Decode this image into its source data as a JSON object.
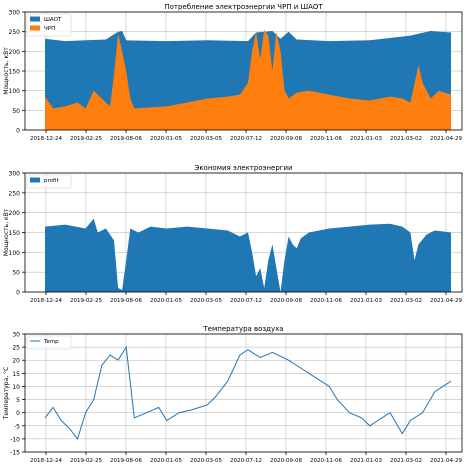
{
  "colors": {
    "shaot": "#1f77b4",
    "chp": "#ff7f0e",
    "profit": "#1f77b4",
    "temp": "#1f77b4",
    "grid": "#b0b0b0"
  },
  "chart_data": [
    {
      "type": "area",
      "title": "Потребление электроэнергии ЧРП и ШАОТ",
      "xlabel": "",
      "ylabel": "Мощность, кВт",
      "ylim": [
        0,
        300
      ],
      "y_ticks": [
        0,
        50,
        100,
        150,
        200,
        250,
        300
      ],
      "x_ticks": [
        "2018-12-24",
        "2019-02-25",
        "2019-08-06",
        "2020-01-05",
        "2020-03-05",
        "2020-07-12",
        "2020-09-08",
        "2020-11-06",
        "2021-01-03",
        "2021-03-02",
        "2021-04-29"
      ],
      "grid": true,
      "legend": "top-left",
      "series": [
        {
          "name": "ШАОТ",
          "key": "shaot",
          "description": "total consumption, approx. constant level with peaks",
          "points": [
            [
              0,
              232
            ],
            [
              0.05,
              226
            ],
            [
              0.1,
              228
            ],
            [
              0.15,
              230
            ],
            [
              0.18,
              250
            ],
            [
              0.19,
              252
            ],
            [
              0.2,
              228
            ],
            [
              0.3,
              226
            ],
            [
              0.4,
              228
            ],
            [
              0.5,
              226
            ],
            [
              0.52,
              248
            ],
            [
              0.56,
              252
            ],
            [
              0.58,
              232
            ],
            [
              0.6,
              250
            ],
            [
              0.62,
              230
            ],
            [
              0.7,
              226
            ],
            [
              0.8,
              228
            ],
            [
              0.9,
              240
            ],
            [
              0.95,
              252
            ],
            [
              1.0,
              248
            ]
          ]
        },
        {
          "name": "ЧРП",
          "key": "chp",
          "description": "variable frequency drive consumption",
          "points": [
            [
              0,
              85
            ],
            [
              0.02,
              55
            ],
            [
              0.05,
              60
            ],
            [
              0.08,
              70
            ],
            [
              0.1,
              55
            ],
            [
              0.12,
              100
            ],
            [
              0.14,
              80
            ],
            [
              0.16,
              60
            ],
            [
              0.17,
              140
            ],
            [
              0.18,
              245
            ],
            [
              0.19,
              200
            ],
            [
              0.2,
              150
            ],
            [
              0.21,
              80
            ],
            [
              0.22,
              55
            ],
            [
              0.3,
              60
            ],
            [
              0.35,
              70
            ],
            [
              0.4,
              80
            ],
            [
              0.45,
              85
            ],
            [
              0.48,
              90
            ],
            [
              0.5,
              120
            ],
            [
              0.51,
              200
            ],
            [
              0.52,
              250
            ],
            [
              0.53,
              180
            ],
            [
              0.54,
              255
            ],
            [
              0.55,
              240
            ],
            [
              0.56,
              150
            ],
            [
              0.57,
              250
            ],
            [
              0.58,
              200
            ],
            [
              0.59,
              100
            ],
            [
              0.6,
              80
            ],
            [
              0.62,
              95
            ],
            [
              0.65,
              100
            ],
            [
              0.7,
              90
            ],
            [
              0.75,
              80
            ],
            [
              0.8,
              75
            ],
            [
              0.85,
              85
            ],
            [
              0.88,
              80
            ],
            [
              0.9,
              70
            ],
            [
              0.92,
              165
            ],
            [
              0.93,
              120
            ],
            [
              0.95,
              80
            ],
            [
              0.97,
              100
            ],
            [
              1.0,
              90
            ]
          ]
        }
      ]
    },
    {
      "type": "area",
      "title": "Экономия электроэнергии",
      "xlabel": "",
      "ylabel": "Мощность, кВт",
      "ylim": [
        0,
        300
      ],
      "y_ticks": [
        0,
        50,
        100,
        150,
        200,
        250,
        300
      ],
      "x_ticks": [
        "2018-12-24",
        "2019-02-25",
        "2019-08-06",
        "2020-01-05",
        "2020-03-05",
        "2020-07-12",
        "2020-09-08",
        "2020-11-06",
        "2021-01-03",
        "2021-03-02",
        "2021-04-29"
      ],
      "grid": true,
      "legend": "top-left",
      "series": [
        {
          "name": "profit",
          "key": "profit",
          "points": [
            [
              0,
              165
            ],
            [
              0.05,
              170
            ],
            [
              0.1,
              160
            ],
            [
              0.12,
              185
            ],
            [
              0.13,
              150
            ],
            [
              0.15,
              160
            ],
            [
              0.17,
              130
            ],
            [
              0.18,
              10
            ],
            [
              0.19,
              5
            ],
            [
              0.2,
              80
            ],
            [
              0.21,
              160
            ],
            [
              0.23,
              150
            ],
            [
              0.26,
              165
            ],
            [
              0.3,
              160
            ],
            [
              0.35,
              165
            ],
            [
              0.4,
              160
            ],
            [
              0.45,
              155
            ],
            [
              0.48,
              140
            ],
            [
              0.5,
              150
            ],
            [
              0.51,
              100
            ],
            [
              0.52,
              40
            ],
            [
              0.53,
              60
            ],
            [
              0.54,
              10
            ],
            [
              0.55,
              80
            ],
            [
              0.56,
              120
            ],
            [
              0.57,
              60
            ],
            [
              0.58,
              0
            ],
            [
              0.59,
              80
            ],
            [
              0.6,
              140
            ],
            [
              0.61,
              120
            ],
            [
              0.62,
              110
            ],
            [
              0.63,
              135
            ],
            [
              0.65,
              150
            ],
            [
              0.7,
              160
            ],
            [
              0.75,
              165
            ],
            [
              0.8,
              170
            ],
            [
              0.85,
              172
            ],
            [
              0.88,
              165
            ],
            [
              0.9,
              150
            ],
            [
              0.91,
              80
            ],
            [
              0.92,
              120
            ],
            [
              0.94,
              145
            ],
            [
              0.96,
              155
            ],
            [
              1.0,
              150
            ]
          ]
        }
      ]
    },
    {
      "type": "line",
      "title": "Температура воздуха",
      "xlabel": "",
      "ylabel": "Температура, °С",
      "ylim": [
        -15,
        30
      ],
      "y_ticks": [
        -15,
        -10,
        -5,
        0,
        5,
        10,
        15,
        20,
        25,
        30
      ],
      "x_ticks": [
        "2018-12-24",
        "2019-02-25",
        "2019-08-06",
        "2020-01-05",
        "2020-03-05",
        "2020-07-12",
        "2020-09-08",
        "2020-11-06",
        "2021-01-03",
        "2021-03-02",
        "2021-04-29"
      ],
      "grid": true,
      "legend": "top-left",
      "series": [
        {
          "name": "Temp",
          "key": "temp",
          "points": [
            [
              0,
              -2
            ],
            [
              0.02,
              2
            ],
            [
              0.04,
              -3
            ],
            [
              0.06,
              -6
            ],
            [
              0.08,
              -10
            ],
            [
              0.1,
              0
            ],
            [
              0.12,
              5
            ],
            [
              0.14,
              18
            ],
            [
              0.16,
              22
            ],
            [
              0.18,
              20
            ],
            [
              0.2,
              25
            ],
            [
              0.22,
              -2
            ],
            [
              0.25,
              0
            ],
            [
              0.28,
              2
            ],
            [
              0.3,
              -3
            ],
            [
              0.33,
              0
            ],
            [
              0.36,
              1
            ],
            [
              0.4,
              3
            ],
            [
              0.42,
              6
            ],
            [
              0.45,
              12
            ],
            [
              0.48,
              22
            ],
            [
              0.5,
              24
            ],
            [
              0.53,
              21
            ],
            [
              0.56,
              23
            ],
            [
              0.6,
              20
            ],
            [
              0.62,
              18
            ],
            [
              0.65,
              15
            ],
            [
              0.7,
              10
            ],
            [
              0.72,
              5
            ],
            [
              0.75,
              0
            ],
            [
              0.78,
              -2
            ],
            [
              0.8,
              -5
            ],
            [
              0.82,
              -3
            ],
            [
              0.85,
              0
            ],
            [
              0.88,
              -8
            ],
            [
              0.9,
              -3
            ],
            [
              0.93,
              0
            ],
            [
              0.96,
              8
            ],
            [
              0.98,
              10
            ],
            [
              1.0,
              12
            ]
          ]
        }
      ]
    }
  ]
}
